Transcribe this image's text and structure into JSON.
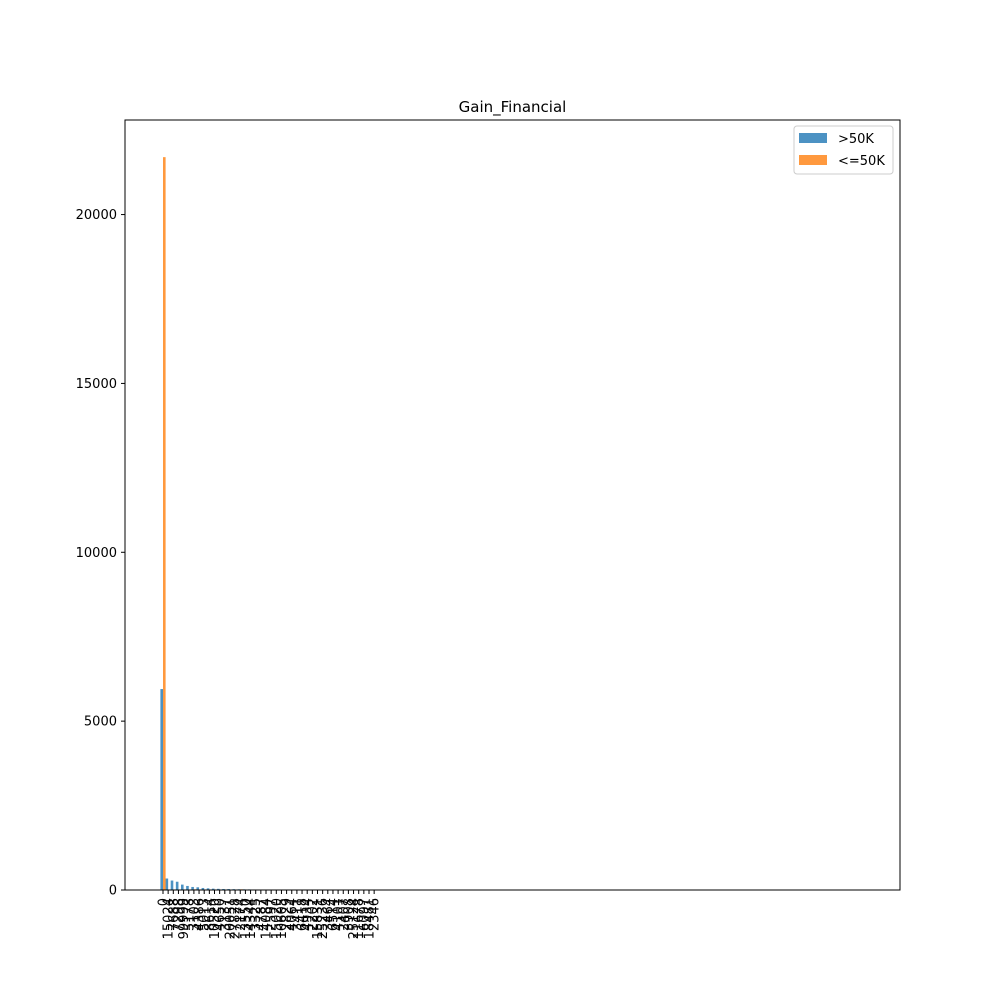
{
  "chart_data": {
    "type": "bar",
    "title": "Gain_Financial",
    "xlabel": "",
    "ylabel": "",
    "ylim": [
      0,
      22800
    ],
    "y_ticks": [
      0,
      5000,
      10000,
      15000,
      20000
    ],
    "categories": [
      "0",
      "15024",
      "7688",
      "7298",
      "99999",
      "5178",
      "3103",
      "4386",
      "5013",
      "8614",
      "10520",
      "4650",
      "3137",
      "20051",
      "27828",
      "2174",
      "13550",
      "14344",
      "3325",
      "4787",
      "14084",
      "2597",
      "15020",
      "10605",
      "2829",
      "4064",
      "3411",
      "6418",
      "4934",
      "2202",
      "15831",
      "25236",
      "3464",
      "6514",
      "4101",
      "2407",
      "3908",
      "25124",
      "11678",
      "6097",
      "18481",
      "2346"
    ],
    "series": [
      {
        "name": ">50K",
        "color": "#1f77b4",
        "values": [
          5950,
          340,
          280,
          245,
          160,
          120,
          90,
          80,
          60,
          50,
          40,
          35,
          30,
          28,
          25,
          22,
          20,
          18,
          15,
          14,
          13,
          12,
          10,
          9,
          8,
          8,
          7,
          7,
          6,
          6,
          5,
          5,
          5,
          4,
          4,
          4,
          3,
          3,
          3,
          2,
          2,
          2
        ]
      },
      {
        "name": "<=50K",
        "color": "#ff7f0e",
        "values": [
          21700,
          0,
          0,
          0,
          0,
          10,
          20,
          15,
          10,
          0,
          5,
          5,
          10,
          5,
          0,
          20,
          5,
          5,
          10,
          5,
          0,
          10,
          0,
          0,
          10,
          10,
          10,
          5,
          5,
          5,
          0,
          0,
          5,
          5,
          10,
          5,
          5,
          0,
          0,
          0,
          0,
          5
        ]
      }
    ],
    "legend": {
      "position": "upper-right",
      "entries": [
        ">50K",
        "<=50K"
      ]
    },
    "grid": false
  }
}
